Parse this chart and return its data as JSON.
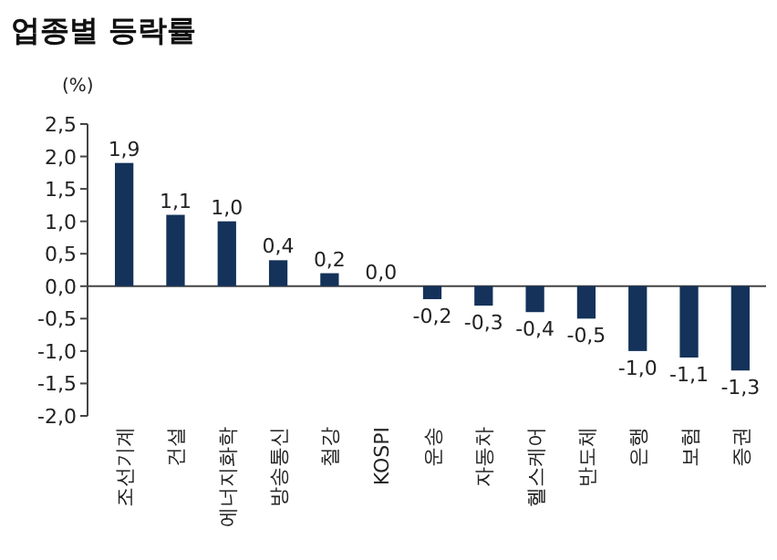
{
  "chart_data": {
    "type": "bar",
    "title": "업종별 등락률",
    "ylabel": "(%)",
    "categories": [
      "조선기계",
      "건설",
      "에너지화학",
      "방송통신",
      "철강",
      "KOSPI",
      "운송",
      "자동차",
      "헬스케어",
      "반도체",
      "은행",
      "보험",
      "증권"
    ],
    "values": [
      1.9,
      1.1,
      1.0,
      0.4,
      0.2,
      0.0,
      -0.2,
      -0.3,
      -0.4,
      -0.5,
      -1.0,
      -1.1,
      -1.3
    ],
    "value_labels": [
      "1,9",
      "1,1",
      "1,0",
      "0,4",
      "0,2",
      "0,0",
      "-0,2",
      "-0,3",
      "-0,4",
      "-0,5",
      "-1,0",
      "-1,1",
      "-1,3"
    ],
    "color": "#14325a",
    "ylim": [
      -2.0,
      2.5
    ],
    "yticks": [
      {
        "value": 2.5,
        "label": "2,5"
      },
      {
        "value": 2.0,
        "label": "2,0"
      },
      {
        "value": 1.5,
        "label": "1,5"
      },
      {
        "value": 1.0,
        "label": "1,0"
      },
      {
        "value": 0.5,
        "label": "0,5"
      },
      {
        "value": 0.0,
        "label": "0,0"
      },
      {
        "value": -0.5,
        "label": "-0,5"
      },
      {
        "value": -1.0,
        "label": "-1,0"
      },
      {
        "value": -1.5,
        "label": "-1,5"
      },
      {
        "value": -2.0,
        "label": "-2,0"
      }
    ]
  }
}
